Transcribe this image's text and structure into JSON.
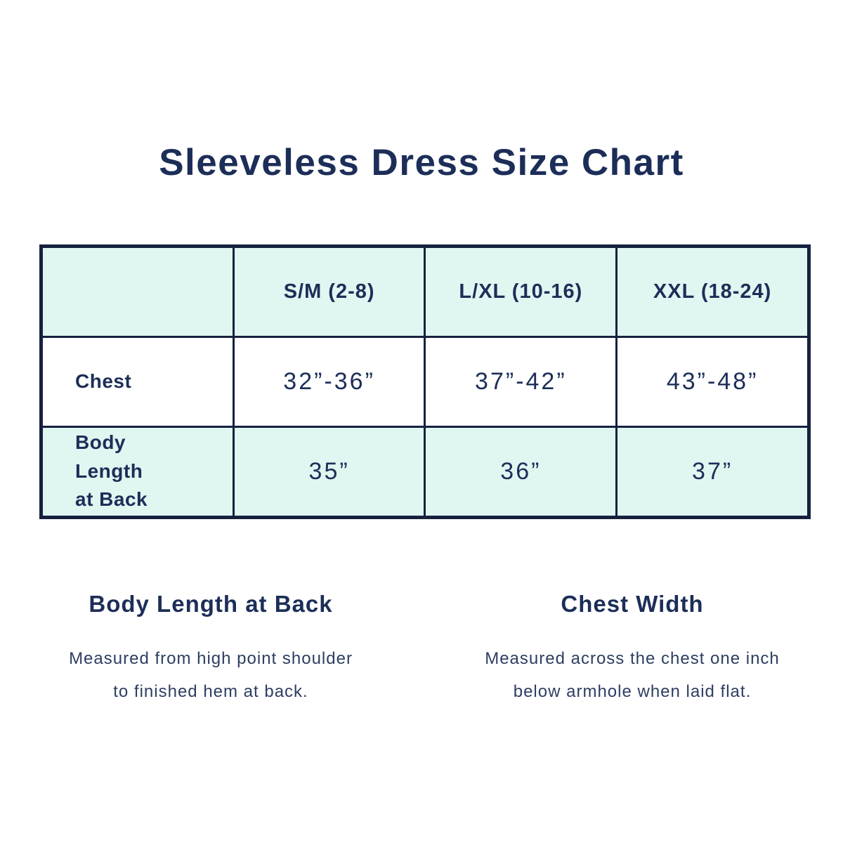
{
  "title": "Sleeveless Dress Size Chart",
  "colors": {
    "text_navy": "#1c2e58",
    "border_navy": "#16213e",
    "mint_row": "#e0f6f1",
    "white_row": "#ffffff",
    "note_text": "#2e3e61",
    "background": "#ffffff"
  },
  "chart_data": {
    "type": "table",
    "title": "Sleeveless Dress Size Chart",
    "columns": [
      "",
      "S/M (2-8)",
      "L/XL (10-16)",
      "XXL (18-24)"
    ],
    "rows": [
      {
        "label": "Chest",
        "values": [
          "32”-36”",
          "37”-42”",
          "43”-48”"
        ]
      },
      {
        "label": "Body Length\nat Back",
        "values": [
          "35”",
          "36”",
          "37”"
        ]
      }
    ],
    "layout": {
      "header_row_background": "mint",
      "row_backgrounds": [
        "white",
        "mint"
      ],
      "grid": "on"
    }
  },
  "notes": [
    {
      "heading": "Body Length at Back",
      "body": "Measured from high point shoulder\nto finished hem at back."
    },
    {
      "heading": "Chest Width",
      "body": "Measured across the chest one inch\nbelow armhole when laid flat."
    }
  ]
}
